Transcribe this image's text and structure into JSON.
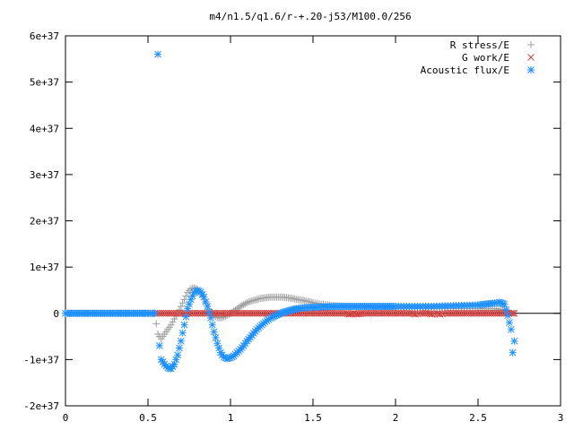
{
  "chart_data": {
    "type": "scatter",
    "title": "m4/n1.5/q1.6/r-+.20-j53/M100.0/256",
    "xlabel": "",
    "ylabel": "",
    "xlim": [
      0,
      3
    ],
    "ylim": [
      -2e+37,
      6e+37
    ],
    "x_ticks": [
      {
        "value": 0,
        "label": "0"
      },
      {
        "value": 0.5,
        "label": "0.5"
      },
      {
        "value": 1,
        "label": "1"
      },
      {
        "value": 1.5,
        "label": "1.5"
      },
      {
        "value": 2,
        "label": "2"
      },
      {
        "value": 2.5,
        "label": "2.5"
      },
      {
        "value": 3,
        "label": "3"
      }
    ],
    "y_ticks": [
      {
        "value": -2e+37,
        "label": "-2e+37"
      },
      {
        "value": -1e+37,
        "label": "-1e+37"
      },
      {
        "value": 0,
        "label": "0"
      },
      {
        "value": 1e+37,
        "label": "1e+37"
      },
      {
        "value": 2e+37,
        "label": "2e+37"
      },
      {
        "value": 3e+37,
        "label": "3e+37"
      },
      {
        "value": 4e+37,
        "label": "4e+37"
      },
      {
        "value": 5e+37,
        "label": "5e+37"
      },
      {
        "value": 6e+37,
        "label": "6e+37"
      }
    ],
    "grid": false,
    "legend_position": "top-right",
    "series": [
      {
        "name": "R stress/E",
        "marker": "plus",
        "color": "#a0a0a0",
        "x": [
          0.0,
          0.1,
          0.2,
          0.3,
          0.4,
          0.5,
          0.54,
          0.56,
          0.58,
          0.6,
          0.62,
          0.64,
          0.66,
          0.68,
          0.7,
          0.72,
          0.74,
          0.76,
          0.78,
          0.8,
          0.82,
          0.84,
          0.86,
          0.88,
          0.9,
          0.92,
          0.94,
          0.96,
          0.98,
          1.0,
          1.02,
          1.04,
          1.06,
          1.08,
          1.1,
          1.12,
          1.14,
          1.16,
          1.18,
          1.2,
          1.22,
          1.24,
          1.26,
          1.28,
          1.3,
          1.32,
          1.34,
          1.36,
          1.38,
          1.4,
          1.42,
          1.44,
          1.46,
          1.48,
          1.5,
          1.55,
          1.6,
          1.65,
          1.7,
          1.75,
          1.8,
          1.9,
          2.0,
          2.1,
          2.2,
          2.3,
          2.4,
          2.5,
          2.55,
          2.6,
          2.65,
          2.68,
          2.7
        ],
        "y": [
          0,
          0,
          0,
          0,
          0,
          0,
          0,
          -4.5e+36,
          -5.5e+36,
          -4.5e+36,
          -3.5e+36,
          -2.5e+36,
          -1.2e+36,
          0,
          1.5e+36,
          3e+36,
          4.5e+36,
          5.3e+36,
          5.5e+36,
          5.2e+36,
          4.5e+36,
          3e+36,
          1.5e+36,
          3e+35,
          -5e+35,
          -9e+35,
          -1e+36,
          -8e+35,
          -4e+35,
          0,
          5e+35,
          1e+36,
          1.5e+36,
          1.9e+36,
          2.3e+36,
          2.6e+36,
          2.8e+36,
          3e+36,
          3.2e+36,
          3.3e+36,
          3.4e+36,
          3.5e+36,
          3.5e+36,
          3.5e+36,
          3.5e+36,
          3.5e+36,
          3.4e+36,
          3.3e+36,
          3.2e+36,
          3e+36,
          2.9e+36,
          2.8e+36,
          2.6e+36,
          2.5e+36,
          2.3e+36,
          2e+36,
          1.8e+36,
          1.6e+36,
          1.5e+36,
          1.4e+36,
          1.3e+36,
          1.1e+36,
          1e+36,
          1e+36,
          1e+36,
          1e+36,
          1e+36,
          1e+36,
          1e+36,
          1e+36,
          8e+35,
          5e+35,
          0
        ]
      },
      {
        "name": "G work/E",
        "marker": "cross",
        "color": "#d04040",
        "x": [
          0.55,
          0.6,
          0.65,
          0.7,
          0.75,
          0.8,
          0.85,
          0.9,
          0.95,
          1.0,
          1.05,
          1.1,
          1.15,
          1.2,
          1.25,
          1.3,
          1.35,
          1.4,
          1.45,
          1.5,
          1.55,
          1.6,
          1.65,
          1.7,
          1.72,
          1.75,
          1.77,
          1.8,
          1.85,
          1.9,
          1.95,
          2.0,
          2.05,
          2.1,
          2.12,
          2.15,
          2.2,
          2.22,
          2.25,
          2.27,
          2.3,
          2.35,
          2.4,
          2.45,
          2.5,
          2.55,
          2.6,
          2.65,
          2.7,
          2.72
        ],
        "y": [
          0,
          0,
          0,
          0,
          0,
          0,
          0,
          0,
          0,
          0,
          0,
          0,
          0,
          0,
          0,
          0,
          0,
          0,
          0,
          0,
          0,
          0,
          0,
          0,
          -2e+35,
          0,
          -2e+35,
          0,
          0,
          0,
          0,
          0,
          0,
          0,
          -2e+35,
          0,
          0,
          -2e+35,
          0,
          -2e+35,
          0,
          0,
          0,
          0,
          0,
          0,
          0,
          0,
          0,
          0
        ]
      },
      {
        "name": "Acoustic flux/E",
        "marker": "star",
        "color": "#1e90ff",
        "x": [
          0.0,
          0.05,
          0.1,
          0.15,
          0.2,
          0.25,
          0.3,
          0.35,
          0.4,
          0.45,
          0.5,
          0.54,
          0.56,
          0.57,
          0.58,
          0.6,
          0.62,
          0.64,
          0.66,
          0.68,
          0.7,
          0.72,
          0.74,
          0.76,
          0.78,
          0.8,
          0.82,
          0.84,
          0.86,
          0.88,
          0.9,
          0.92,
          0.94,
          0.96,
          0.98,
          1.0,
          1.02,
          1.04,
          1.06,
          1.08,
          1.1,
          1.12,
          1.14,
          1.16,
          1.18,
          1.2,
          1.22,
          1.24,
          1.26,
          1.28,
          1.3,
          1.32,
          1.34,
          1.36,
          1.38,
          1.4,
          1.45,
          1.5,
          1.55,
          1.6,
          1.65,
          1.7,
          1.75,
          1.8,
          1.85,
          1.9,
          1.95,
          2.0,
          2.1,
          2.2,
          2.3,
          2.4,
          2.5,
          2.55,
          2.6,
          2.63,
          2.66,
          2.68,
          2.7,
          2.71,
          2.72
        ],
        "y": [
          0,
          0,
          0,
          0,
          0,
          0,
          0,
          0,
          0,
          0,
          0,
          0,
          5.6e+37,
          -7e+36,
          -1e+37,
          -1.1e+37,
          -1.18e+37,
          -1.2e+37,
          -1.1e+37,
          -9e+36,
          -6e+36,
          -2.5e+36,
          1e+36,
          3e+36,
          4.5e+36,
          5e+36,
          4.6e+36,
          3.5e+36,
          1.5e+36,
          -1e+36,
          -4e+36,
          -6.5e+36,
          -8.5e+36,
          -9.5e+36,
          -9.8e+36,
          -9.6e+36,
          -9.2e+36,
          -8.5e+36,
          -7.8e+36,
          -7e+36,
          -6e+36,
          -5.2e+36,
          -4.3e+36,
          -3.5e+36,
          -2.8e+36,
          -2.2e+36,
          -1.6e+36,
          -1.1e+36,
          -7e+35,
          -4e+35,
          -1e+35,
          2e+35,
          4e+35,
          6e+35,
          8e+35,
          1e+36,
          1.2e+36,
          1.3e+36,
          1.4e+36,
          1.45e+36,
          1.5e+36,
          1.5e+36,
          1.5e+36,
          1.5e+36,
          1.5e+36,
          1.5e+36,
          1.5e+36,
          1.5e+36,
          1.5e+36,
          1.5e+36,
          1.6e+36,
          1.7e+36,
          1.8e+36,
          2e+36,
          2.2e+36,
          2.4e+36,
          2e+36,
          -5e+35,
          -3.5e+36,
          -8.5e+36,
          -6e+36
        ]
      }
    ]
  }
}
